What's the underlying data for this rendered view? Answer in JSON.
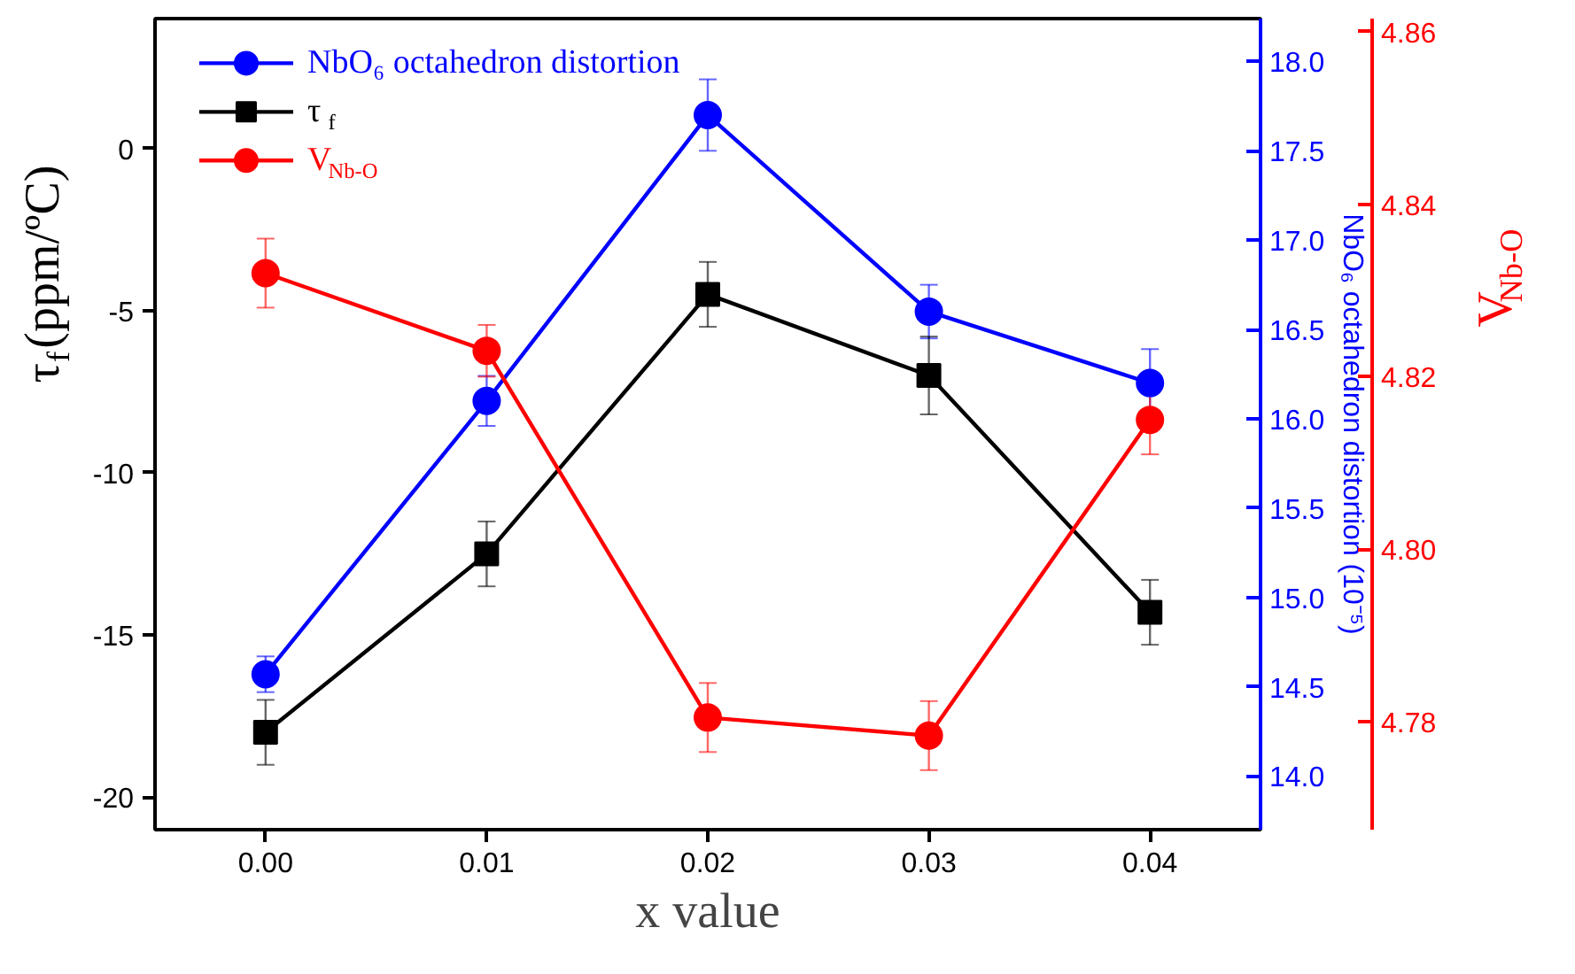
{
  "chart_data": {
    "type": "line",
    "xlabel": "x value",
    "ylabel": "τ$_{f}$(ppm/ºC)",
    "y2label": "NbO₆ octahedron distortion (10⁻⁵)",
    "y3label": "V$_{Nb-O}$",
    "x": [
      0,
      0.01,
      0.02,
      0.03,
      0.04
    ],
    "xlim": [
      -0.005,
      0.045
    ],
    "xticks": [
      {
        "value": 0,
        "label": "0.00"
      },
      {
        "value": 0.01,
        "label": "0.01"
      },
      {
        "value": 0.02,
        "label": "0.02"
      },
      {
        "value": 0.03,
        "label": "0.03"
      },
      {
        "value": 0.04,
        "label": "0.04"
      }
    ],
    "ylim": [
      -21,
      4
    ],
    "yticks": [
      -20,
      -15,
      -10,
      -5,
      0
    ],
    "y2lim": [
      13.7,
      18.24
    ],
    "y2ticks": [
      {
        "value": 14,
        "label": "14.0"
      },
      {
        "value": 14.5,
        "label": "14.5"
      },
      {
        "value": 15,
        "label": "15.0"
      },
      {
        "value": 15.5,
        "label": "15.5"
      },
      {
        "value": 16,
        "label": "16.0"
      },
      {
        "value": 16.5,
        "label": "16.5"
      },
      {
        "value": 17,
        "label": "17.0"
      },
      {
        "value": 17.5,
        "label": "17.5"
      },
      {
        "value": 18,
        "label": "18.0"
      }
    ],
    "y3lim": [
      4.7675,
      4.8615
    ],
    "y3ticks": [
      4.78,
      {
        "value": 4.8,
        "label": "4.80"
      },
      4.82,
      4.84,
      4.86
    ],
    "legend": "top left",
    "grid": false,
    "line_style": "solid",
    "series": [
      {
        "name": "NbO₆ octahedron distortion",
        "color": "#0000ff",
        "marker": "circle",
        "axis": "y2",
        "values": [
          14.57,
          16.1,
          17.7,
          16.6,
          16.2
        ],
        "errors": [
          0.1,
          0.14,
          0.2,
          0.15,
          0.19
        ]
      },
      {
        "name": "τ$_{f}$",
        "color": "#000000",
        "marker": "square",
        "values": [
          -18.0,
          -12.5,
          -4.5,
          -7.0,
          -14.3
        ],
        "errors": [
          1.0,
          1.0,
          1.0,
          1.2,
          1.0
        ]
      },
      {
        "name": "V$_{Nb-O}$",
        "color": "#ff0000",
        "marker": "circle",
        "axis": "y3",
        "values": [
          4.832,
          4.823,
          4.7805,
          4.7784,
          4.815
        ],
        "errors": [
          0.004,
          0.003,
          0.004,
          0.004,
          0.004
        ]
      }
    ]
  }
}
